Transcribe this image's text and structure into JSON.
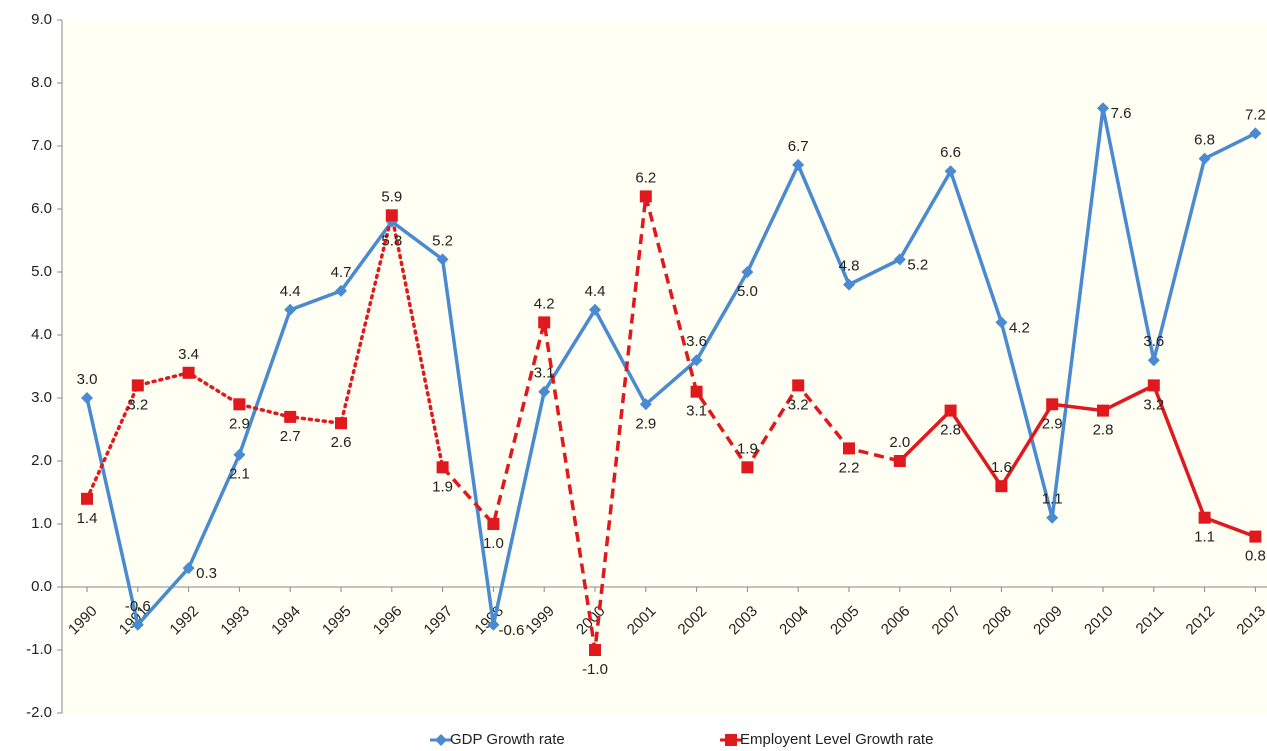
{
  "chart_data": {
    "type": "line",
    "categories": [
      "1990",
      "1991",
      "1992",
      "1993",
      "1994",
      "1995",
      "1996",
      "1997",
      "1998",
      "1999",
      "2000",
      "2001",
      "2002",
      "2003",
      "2004",
      "2005",
      "2006",
      "2007",
      "2008",
      "2009",
      "2010",
      "2011",
      "2012",
      "2013"
    ],
    "series": [
      {
        "name": "GDP Growth rate",
        "color": "#4a8ad0",
        "marker": "diamond",
        "values": [
          3.0,
          -0.6,
          0.3,
          2.1,
          4.4,
          4.7,
          5.8,
          5.2,
          -0.6,
          3.1,
          4.4,
          2.9,
          3.6,
          5.0,
          6.7,
          4.8,
          5.2,
          6.6,
          4.2,
          1.1,
          7.6,
          3.6,
          6.8,
          7.2
        ],
        "value_labels": [
          "3.0",
          "-0.6",
          "0.3",
          "2.1",
          "4.4",
          "4.7",
          "5.8",
          "5.2",
          "-0.6",
          "3.1",
          "4.4",
          "2.9",
          "3.6",
          "5.0",
          "6.7",
          "4.8",
          "5.2",
          "6.6",
          "4.2",
          "1.1",
          "7.6",
          "3.6",
          "6.8",
          "7.2"
        ],
        "line_styles": [
          {
            "dash": "solid",
            "from": "1990",
            "to": "2013"
          }
        ]
      },
      {
        "name": "Employent Level Growth rate",
        "color": "#e0191e",
        "marker": "square",
        "values": [
          1.4,
          3.2,
          3.4,
          2.9,
          2.7,
          2.6,
          5.9,
          1.9,
          1.0,
          4.2,
          -1.0,
          6.2,
          3.1,
          1.9,
          3.2,
          2.2,
          2.0,
          2.8,
          1.6,
          2.9,
          2.8,
          3.2,
          1.1,
          0.8
        ],
        "value_labels": [
          "1.4",
          "3.2",
          "3.4",
          "2.9",
          "2.7",
          "2.6",
          "5.9",
          "1.9",
          "1.0",
          "4.2",
          "-1.0",
          "6.2",
          "3.1",
          "1.9",
          "3.2",
          "2.2",
          "2.0",
          "2.8",
          "1.6",
          "2.9",
          "2.8",
          "3.2",
          "1.1",
          "0.8"
        ],
        "line_styles": [
          {
            "dash": "dotted",
            "from": "1990",
            "to": "1997"
          },
          {
            "dash": "dashed",
            "from": "1997",
            "to": "2006"
          },
          {
            "dash": "solid",
            "from": "2006",
            "to": "2013"
          }
        ]
      }
    ],
    "ylim": [
      -2,
      9
    ],
    "yticks": [
      {
        "value": -2,
        "label": "-2.0"
      },
      {
        "value": -1,
        "label": "-1.0"
      },
      {
        "value": 0,
        "label": "0.0"
      },
      {
        "value": 1,
        "label": "1.0"
      },
      {
        "value": 2,
        "label": "2.0"
      },
      {
        "value": 3,
        "label": "3.0"
      },
      {
        "value": 4,
        "label": "4.0"
      },
      {
        "value": 5,
        "label": "5.0"
      },
      {
        "value": 6,
        "label": "6.0"
      },
      {
        "value": 7,
        "label": "7.0"
      },
      {
        "value": 8,
        "label": "8.0"
      },
      {
        "value": 9,
        "label": "9.0"
      }
    ],
    "legend": "bottom"
  }
}
